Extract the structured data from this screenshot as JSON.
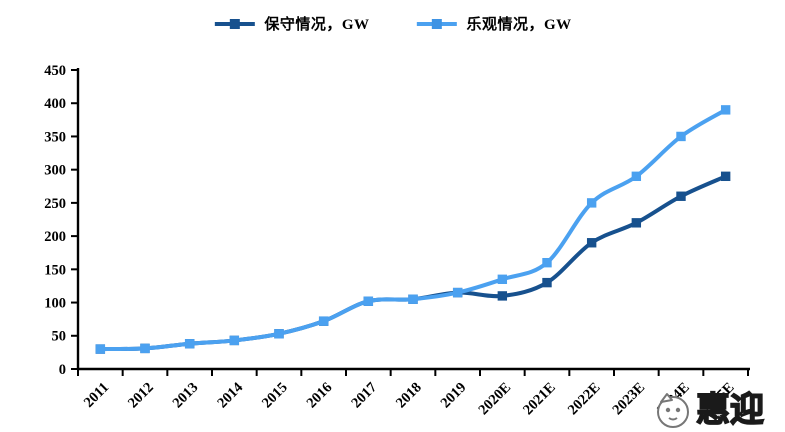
{
  "legend": {
    "items": [
      {
        "label": "保守情况，GW",
        "color": "#17518E"
      },
      {
        "label": "乐观情况，GW",
        "color": "#4BA1F0"
      }
    ]
  },
  "chart_data": {
    "type": "line",
    "title": "",
    "xlabel": "",
    "ylabel": "",
    "categories": [
      "2011",
      "2012",
      "2013",
      "2014",
      "2015",
      "2016",
      "2017",
      "2018",
      "2019",
      "2020E",
      "2021E",
      "2022E",
      "2023E",
      "2024E",
      "2025E"
    ],
    "series": [
      {
        "name": "保守情况，GW",
        "color": "#17518E",
        "values": [
          30,
          31,
          38,
          43,
          53,
          72,
          102,
          105,
          115,
          110,
          130,
          190,
          220,
          260,
          290
        ]
      },
      {
        "name": "乐观情况，GW",
        "color": "#4BA1F0",
        "values": [
          30,
          31,
          38,
          43,
          53,
          72,
          102,
          105,
          115,
          135,
          160,
          250,
          290,
          350,
          390
        ]
      }
    ],
    "ylim": [
      0,
      450
    ],
    "yticks": [
      0,
      50,
      100,
      150,
      200,
      250,
      300,
      350,
      400,
      450
    ],
    "grid": false,
    "legend_position": "top-center",
    "axis_color": "#000000",
    "marker": "square",
    "line_style": "smooth"
  },
  "watermark": {
    "text": "惠迎"
  }
}
